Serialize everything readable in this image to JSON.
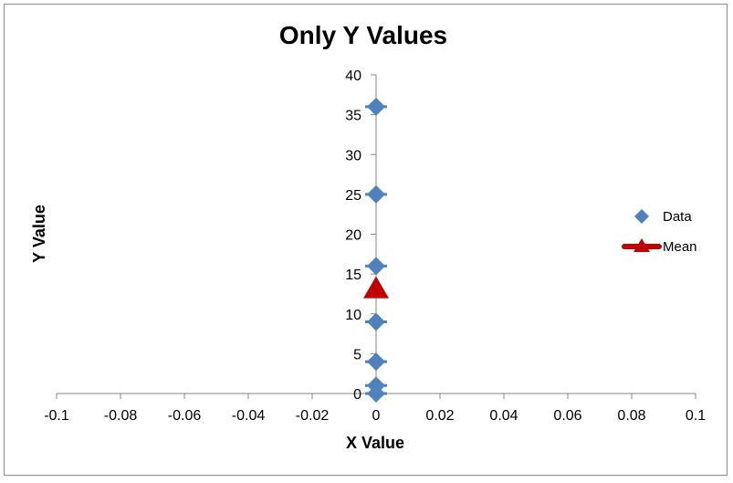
{
  "chart_data": {
    "type": "scatter",
    "title": "Only Y Values",
    "xlabel": "X Value",
    "ylabel": "Y Value",
    "xlim": [
      -0.1,
      0.1
    ],
    "ylim": [
      0,
      40
    ],
    "x_ticks": [
      -0.1,
      -0.08,
      -0.06,
      -0.04,
      -0.02,
      0,
      0.02,
      0.04,
      0.06,
      0.08,
      0.1
    ],
    "x_tick_labels": [
      "-0.1",
      "-0.08",
      "-0.06",
      "-0.04",
      "-0.02",
      "0",
      "0.02",
      "0.04",
      "0.06",
      "0.08",
      "0.1"
    ],
    "y_ticks": [
      0,
      5,
      10,
      15,
      20,
      25,
      30,
      35,
      40
    ],
    "y_tick_labels": [
      "0",
      "5",
      "10",
      "15",
      "20",
      "25",
      "30",
      "35",
      "40"
    ],
    "grid": false,
    "legend_position": "right",
    "series": [
      {
        "name": "Data",
        "marker": "diamond",
        "color": "#4f81bd",
        "x": [
          0,
          0,
          0,
          0,
          0,
          0,
          0
        ],
        "y": [
          0,
          1,
          4,
          9,
          16,
          25,
          36
        ]
      },
      {
        "name": "Mean",
        "marker": "triangle",
        "color": "#c00000",
        "x": [
          0
        ],
        "y": [
          13
        ]
      }
    ]
  }
}
